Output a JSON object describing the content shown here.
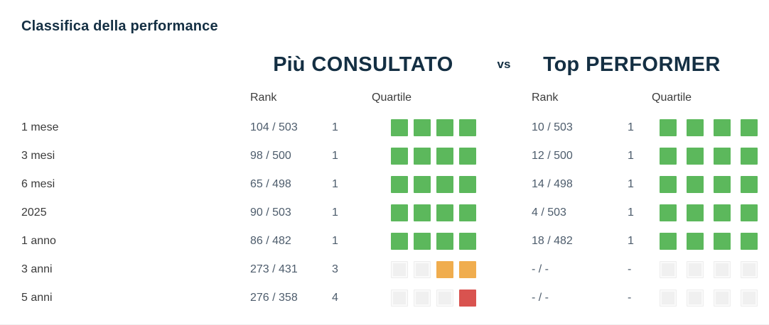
{
  "title": "Classifica della performance",
  "header": {
    "left_prefix": "Più",
    "left_name": "CONSULTATO",
    "vs": "vs",
    "right_prefix": "Top",
    "right_name": "PERFORMER"
  },
  "columns": {
    "rank": "Rank",
    "quartile": "Quartile"
  },
  "colors": {
    "green": "#5cb85c",
    "orange": "#f0ad4e",
    "red": "#d9534f",
    "gray": "#f0f0f0",
    "navy": "#142f43"
  },
  "rows": [
    {
      "period": "1 mese",
      "left": {
        "rank": "104 / 503",
        "quartile": "1",
        "squares": [
          "green",
          "green",
          "green",
          "green"
        ]
      },
      "right": {
        "rank": "10 / 503",
        "quartile": "1",
        "squares": [
          "green",
          "green",
          "green",
          "green"
        ]
      }
    },
    {
      "period": "3 mesi",
      "left": {
        "rank": "98 / 500",
        "quartile": "1",
        "squares": [
          "green",
          "green",
          "green",
          "green"
        ]
      },
      "right": {
        "rank": "12 / 500",
        "quartile": "1",
        "squares": [
          "green",
          "green",
          "green",
          "green"
        ]
      }
    },
    {
      "period": "6 mesi",
      "left": {
        "rank": "65 / 498",
        "quartile": "1",
        "squares": [
          "green",
          "green",
          "green",
          "green"
        ]
      },
      "right": {
        "rank": "14 / 498",
        "quartile": "1",
        "squares": [
          "green",
          "green",
          "green",
          "green"
        ]
      }
    },
    {
      "period": "2025",
      "left": {
        "rank": "90 / 503",
        "quartile": "1",
        "squares": [
          "green",
          "green",
          "green",
          "green"
        ]
      },
      "right": {
        "rank": "4 / 503",
        "quartile": "1",
        "squares": [
          "green",
          "green",
          "green",
          "green"
        ]
      }
    },
    {
      "period": "1 anno",
      "left": {
        "rank": "86 / 482",
        "quartile": "1",
        "squares": [
          "green",
          "green",
          "green",
          "green"
        ]
      },
      "right": {
        "rank": "18 / 482",
        "quartile": "1",
        "squares": [
          "green",
          "green",
          "green",
          "green"
        ]
      }
    },
    {
      "period": "3 anni",
      "left": {
        "rank": "273 / 431",
        "quartile": "3",
        "squares": [
          "gray",
          "gray",
          "orange",
          "orange"
        ]
      },
      "right": {
        "rank": "- / -",
        "quartile": "-",
        "squares": [
          "gray",
          "gray",
          "gray",
          "gray"
        ]
      }
    },
    {
      "period": "5 anni",
      "left": {
        "rank": "276 / 358",
        "quartile": "4",
        "squares": [
          "gray",
          "gray",
          "gray",
          "red"
        ]
      },
      "right": {
        "rank": "- / -",
        "quartile": "-",
        "squares": [
          "gray",
          "gray",
          "gray",
          "gray"
        ]
      }
    }
  ]
}
